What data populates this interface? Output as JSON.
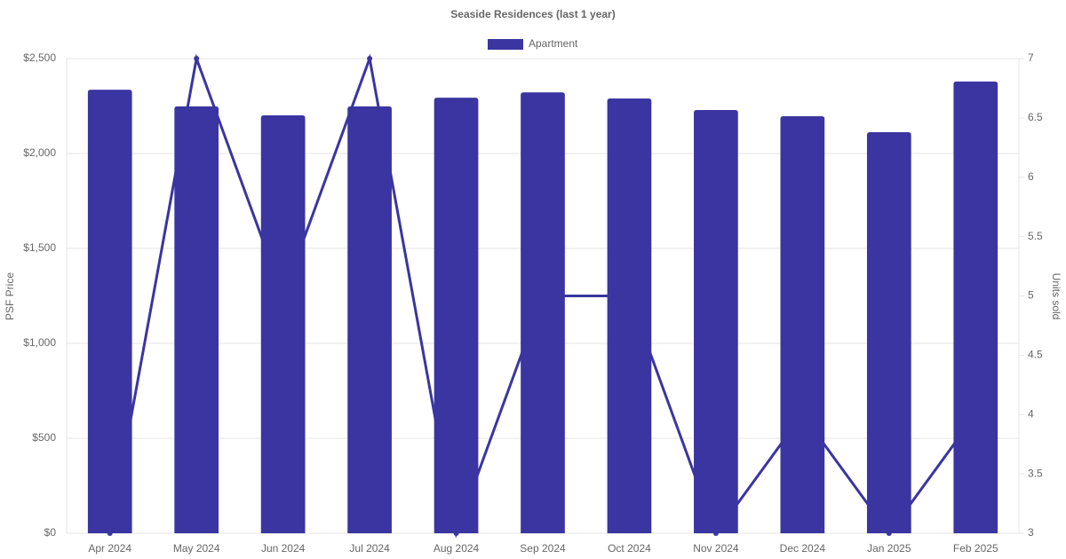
{
  "chart_data": {
    "type": "bar",
    "title": "Seaside Residences (last 1 year)",
    "y_label": "PSF Price",
    "y2_label": "Units sold",
    "categories": [
      "Apr 2024",
      "May 2024",
      "Jun 2024",
      "Jul 2024",
      "Aug 2024",
      "Sep 2024",
      "Oct 2024",
      "Nov 2024",
      "Dec 2024",
      "Jan 2025",
      "Feb 2025"
    ],
    "series": [
      {
        "name": "Apartment",
        "type": "bar",
        "color": "#3a35a0",
        "values": [
          2336,
          2248,
          2201,
          2248,
          2294,
          2322,
          2290,
          2229,
          2196,
          2112,
          2379
        ]
      },
      {
        "type": "line",
        "axis": "y2",
        "color": "#3a35a0",
        "values": [
          3,
          7,
          5,
          7,
          3,
          5,
          5,
          3,
          4,
          3,
          4
        ]
      }
    ],
    "ylim": [
      0,
      2500
    ],
    "yticks": [
      {
        "value": 0,
        "label": "$0"
      },
      {
        "value": 500,
        "label": "$500"
      },
      {
        "value": 1000,
        "label": "$1,000"
      },
      {
        "value": 1500,
        "label": "$1,500"
      },
      {
        "value": 2000,
        "label": "$2,000"
      },
      {
        "value": 2500,
        "label": "$2,500"
      }
    ],
    "y2lim": [
      3,
      7
    ],
    "y2ticks": [
      3,
      3.5,
      4,
      4.5,
      5,
      5.5,
      6,
      6.5,
      7
    ],
    "grid": true,
    "legend": "top"
  }
}
